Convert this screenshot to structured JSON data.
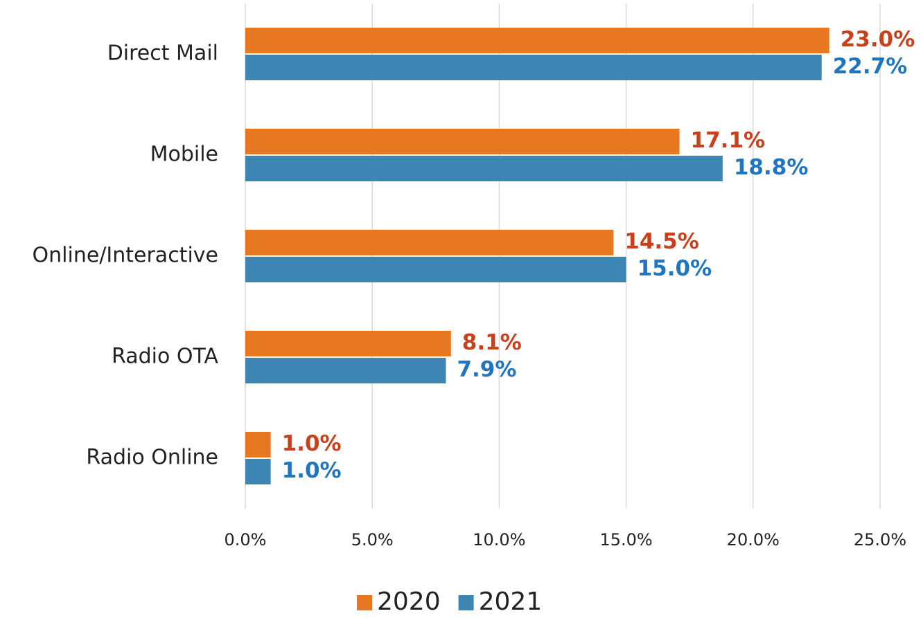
{
  "chart_data": {
    "type": "bar",
    "orientation": "horizontal",
    "categories": [
      "Direct Mail",
      "Mobile",
      "Online/Interactive",
      "Radio OTA",
      "Radio Online"
    ],
    "series": [
      {
        "name": "2020",
        "color": "#e87722",
        "label_color": "#c9401c",
        "values": [
          23.0,
          17.1,
          14.5,
          8.1,
          1.0
        ],
        "value_labels": [
          "23.0%",
          "17.1%",
          "14.5%",
          "8.1%",
          "1.0%"
        ]
      },
      {
        "name": "2021",
        "color": "#3d85b3",
        "label_color": "#1f75bf",
        "values": [
          22.7,
          18.8,
          15.0,
          7.9,
          1.0
        ],
        "value_labels": [
          "22.7%",
          "18.8%",
          "15.0%",
          "7.9%",
          "1.0%"
        ]
      }
    ],
    "xlim": [
      0,
      25
    ],
    "xticks": [
      {
        "value": 0,
        "label": "0.0%"
      },
      {
        "value": 5,
        "label": "5.0%"
      },
      {
        "value": 10,
        "label": "10.0%"
      },
      {
        "value": 15,
        "label": "15.0%"
      },
      {
        "value": 20,
        "label": "20.0%"
      },
      {
        "value": 25,
        "label": "25.0%"
      }
    ],
    "grid": true,
    "legend": "bottom"
  }
}
